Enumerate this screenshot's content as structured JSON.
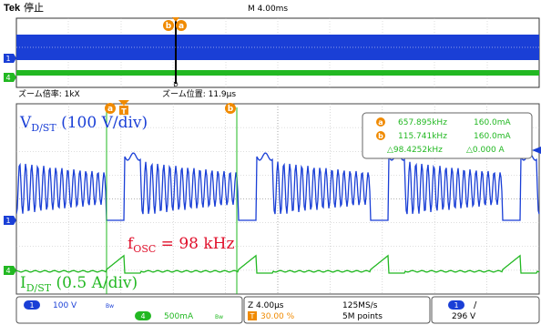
{
  "header": {
    "brand": "Tek",
    "status": "停止",
    "timebase": "M 4.00ms",
    "cursor_markers": [
      "b",
      "a"
    ],
    "trigger_marker": "T"
  },
  "channels": [
    {
      "number": "1",
      "color": "#1a3fd6"
    },
    {
      "number": "4",
      "color": "#22b822"
    }
  ],
  "overview_window_marker": "D",
  "zoom_bar": {
    "zoom_factor_label": "ズーム倍率: 1kX",
    "zoom_position_label": "ズーム位置: 11.9μs"
  },
  "zoom_markers": {
    "a": "a",
    "t": "T",
    "b": "b"
  },
  "annotations": {
    "vds_prefix": "V",
    "vds_sub": "D/ST",
    "vds_scale": " (100 V/div)",
    "fosc_prefix": "f",
    "fosc_sub": "OSC",
    "fosc_value": " = 98 kHz",
    "id_prefix": "I",
    "id_sub": "D/ST",
    "id_scale": " (0.5 A/div)"
  },
  "cursor_readout": {
    "a_badge": "a",
    "a_freq": "657.895kHz",
    "a_value": "160.0mA",
    "b_badge": "b",
    "b_freq": "115.741kHz",
    "b_value": "160.0mA",
    "delta_freq": "△98.4252kHz",
    "delta_value": "△0.000 A"
  },
  "status_bar": {
    "ch1_number": "1",
    "ch1_scale": "100 V",
    "ch1_bw": "Bw",
    "ch4_number": "4",
    "ch4_scale": "500mA",
    "ch4_bw": "Bw",
    "zoom_time": "Z 4.00μs",
    "sample_rate": "125MS/s",
    "trigger_badge": "T",
    "trigger_position": "30.00 %",
    "record_length": "5M points",
    "trig_source": "1",
    "trig_slope": "/",
    "trig_level": "296 V"
  },
  "colors": {
    "ch1": "#1a3fd6",
    "ch4": "#22b822",
    "accent": "#f08a00",
    "annotation_red": "#e0102b",
    "grid": "#9a9a9a"
  }
}
